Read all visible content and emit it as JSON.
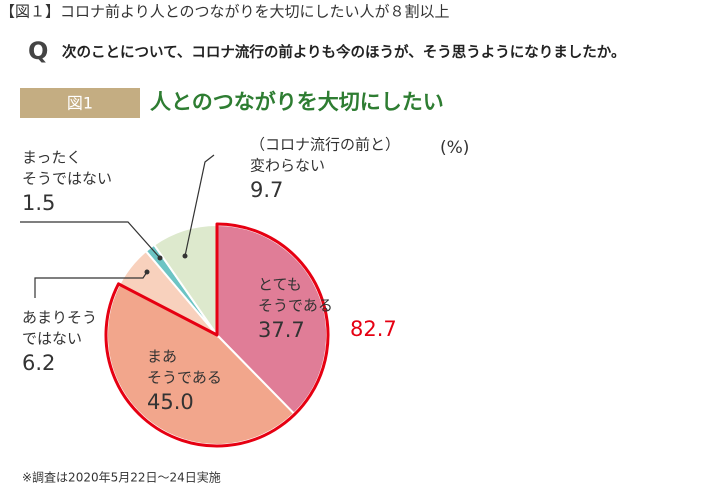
{
  "header": {
    "title": "【図１】コロナ前より人とのつながりを大切にしたい人が８割以上"
  },
  "question": {
    "mark": "Q",
    "text": "次のことについて、コロナ流行の前よりも今のほうが、そう思うようになりましたか。"
  },
  "chart_data": {
    "type": "pie",
    "badge": "図1",
    "title": "人とのつながりを大切にしたい",
    "unit": "(%)",
    "categories": [
      [
        "とても",
        "そうである"
      ],
      [
        "まあ",
        "そうである"
      ],
      [
        "あまりそう",
        "ではない"
      ],
      [
        "まったく",
        "そうではない"
      ],
      [
        "（コロナ流行の前と）",
        "変わらない"
      ]
    ],
    "values": [
      37.7,
      45.0,
      6.2,
      1.5,
      9.7
    ],
    "value_labels": [
      "37.7",
      "45.0",
      "6.2",
      "1.5",
      "9.7"
    ],
    "colors": [
      "#e07d97",
      "#f2a68c",
      "#f8d1bd",
      "#6cc4c4",
      "#dde9cd"
    ],
    "group_total": 82.7,
    "group_color": "#e60012",
    "footnote": "※調査は2020年5月22日～24日実施"
  }
}
